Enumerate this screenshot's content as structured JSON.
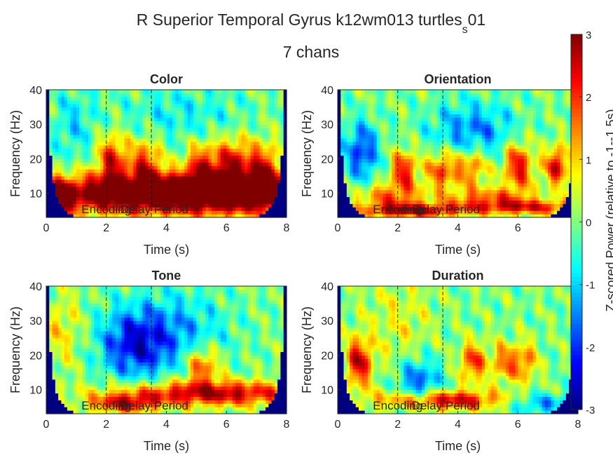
{
  "figure": {
    "title_main": "R Superior Temporal Gyrus k12wm013 turtles",
    "title_sub": "s",
    "title_tail": "01",
    "title_line2": "7 chans"
  },
  "colorbar": {
    "label": "Z-scored Power (relative to -1--1.5s)",
    "ticks": [
      "3",
      "2",
      "1",
      "0",
      "-1",
      "-2",
      "-3"
    ],
    "colormap": "jet"
  },
  "chart_data": [
    {
      "type": "heatmap",
      "title": "Color",
      "xlabel": "Time (s)",
      "ylabel": "Frequency (Hz)",
      "xlim": [
        0,
        8
      ],
      "ylim": [
        3,
        40
      ],
      "xticks": [
        "0",
        "2",
        "4",
        "6",
        "8"
      ],
      "yticks": [
        "10",
        "20",
        "30",
        "40"
      ],
      "event_lines_s": [
        2,
        3.5
      ],
      "annotations": [
        "Encoding",
        "Delay Period"
      ],
      "color_range": [
        -3,
        3
      ],
      "features": [
        {
          "t": 3.0,
          "f": 10,
          "st": 4.0,
          "sf": 4,
          "a": 2.8
        },
        {
          "t": 6.5,
          "f": 10,
          "st": 3.0,
          "sf": 4,
          "a": 2.6
        },
        {
          "t": 2.2,
          "f": 20,
          "st": 0.35,
          "sf": 5,
          "a": 2.2
        },
        {
          "t": 3.3,
          "f": 19,
          "st": 0.35,
          "sf": 5,
          "a": 2.0
        },
        {
          "t": 5.2,
          "f": 18,
          "st": 0.4,
          "sf": 5,
          "a": 2.0
        },
        {
          "t": 6.2,
          "f": 19,
          "st": 0.4,
          "sf": 5,
          "a": 2.2
        },
        {
          "t": 7.2,
          "f": 18,
          "st": 0.4,
          "sf": 5,
          "a": 2.0
        },
        {
          "t": 0.4,
          "f": 8,
          "st": 0.3,
          "sf": 3,
          "a": 2.2
        },
        {
          "t": 0.9,
          "f": 30,
          "st": 0.5,
          "sf": 8,
          "a": -0.8
        },
        {
          "t": 4.5,
          "f": 33,
          "st": 1.5,
          "sf": 6,
          "a": -0.7
        }
      ]
    },
    {
      "type": "heatmap",
      "title": "Orientation",
      "xlabel": "Time (s)",
      "ylabel": "Frequency (Hz)",
      "xlim": [
        0,
        8
      ],
      "ylim": [
        3,
        40
      ],
      "xticks": [
        "0",
        "2",
        "4",
        "6"
      ],
      "yticks": [
        "10",
        "20",
        "30",
        "40"
      ],
      "event_lines_s": [
        2,
        3.5
      ],
      "annotations": [
        "Encoding",
        "Delay Period"
      ],
      "color_range": [
        -3,
        3
      ],
      "features": [
        {
          "t": 2.2,
          "f": 17,
          "st": 0.3,
          "sf": 4,
          "a": 2.2
        },
        {
          "t": 3.5,
          "f": 17,
          "st": 0.4,
          "sf": 4,
          "a": 2.0
        },
        {
          "t": 4.5,
          "f": 18,
          "st": 0.35,
          "sf": 4,
          "a": 1.8
        },
        {
          "t": 6.0,
          "f": 18,
          "st": 0.35,
          "sf": 5,
          "a": 2.4
        },
        {
          "t": 7.3,
          "f": 18,
          "st": 0.3,
          "sf": 4,
          "a": 2.4
        },
        {
          "t": 2.5,
          "f": 5,
          "st": 1.2,
          "sf": 1.5,
          "a": 2.4
        },
        {
          "t": 6.3,
          "f": 6,
          "st": 1.6,
          "sf": 1.5,
          "a": 2.2
        },
        {
          "t": 1.7,
          "f": 9,
          "st": 0.8,
          "sf": 3,
          "a": 1.6
        },
        {
          "t": 5.0,
          "f": 9,
          "st": 1.0,
          "sf": 2,
          "a": 1.5
        },
        {
          "t": 0.8,
          "f": 22,
          "st": 0.4,
          "sf": 6,
          "a": -2.0
        },
        {
          "t": 4.5,
          "f": 28,
          "st": 1.0,
          "sf": 6,
          "a": -1.5
        }
      ]
    },
    {
      "type": "heatmap",
      "title": "Tone",
      "xlabel": "Time (s)",
      "ylabel": "Frequency (Hz)",
      "xlim": [
        0,
        8
      ],
      "ylim": [
        3,
        40
      ],
      "xticks": [
        "0",
        "2",
        "4",
        "6",
        "8"
      ],
      "yticks": [
        "10",
        "20",
        "30",
        "40"
      ],
      "event_lines_s": [
        2,
        3.5
      ],
      "annotations": [
        "Encoding",
        "Delay Period"
      ],
      "color_range": [
        -3,
        3
      ],
      "features": [
        {
          "t": 5.5,
          "f": 9,
          "st": 2.2,
          "sf": 2.5,
          "a": 2.8
        },
        {
          "t": 2.6,
          "f": 6,
          "st": 0.8,
          "sf": 2,
          "a": 2.2
        },
        {
          "t": 5.2,
          "f": 17,
          "st": 0.4,
          "sf": 4,
          "a": 2.0
        },
        {
          "t": 2.9,
          "f": 23,
          "st": 0.8,
          "sf": 7,
          "a": -2.0
        },
        {
          "t": 4.3,
          "f": 27,
          "st": 1.2,
          "sf": 8,
          "a": -1.2
        },
        {
          "t": 0.5,
          "f": 27,
          "st": 0.5,
          "sf": 8,
          "a": 0.8
        }
      ]
    },
    {
      "type": "heatmap",
      "title": "Duration",
      "xlabel": "Time (s)",
      "ylabel": "Frequency (Hz)",
      "xlim": [
        0,
        8
      ],
      "ylim": [
        3,
        40
      ],
      "xticks": [
        "0",
        "2",
        "4",
        "6",
        "8"
      ],
      "yticks": [
        "10",
        "20",
        "30",
        "40"
      ],
      "event_lines_s": [
        2,
        3.5
      ],
      "annotations": [
        "Encoding",
        "Delay Period"
      ],
      "color_range": [
        -3,
        3
      ],
      "features": [
        {
          "t": 0.7,
          "f": 18,
          "st": 0.3,
          "sf": 5,
          "a": 2.5
        },
        {
          "t": 3.5,
          "f": 7,
          "st": 1.5,
          "sf": 2,
          "a": 2.6
        },
        {
          "t": 4.5,
          "f": 18,
          "st": 0.3,
          "sf": 4,
          "a": 2.0
        },
        {
          "t": 5.5,
          "f": 18,
          "st": 0.3,
          "sf": 4,
          "a": 1.5
        },
        {
          "t": 6.2,
          "f": 18,
          "st": 0.3,
          "sf": 4,
          "a": 1.6
        },
        {
          "t": 2.0,
          "f": 30,
          "st": 0.8,
          "sf": 10,
          "a": 0.6
        },
        {
          "t": 2.7,
          "f": 12,
          "st": 0.5,
          "sf": 5,
          "a": -1.8
        },
        {
          "t": 6.8,
          "f": 6,
          "st": 0.8,
          "sf": 2,
          "a": -1.5
        }
      ]
    }
  ]
}
